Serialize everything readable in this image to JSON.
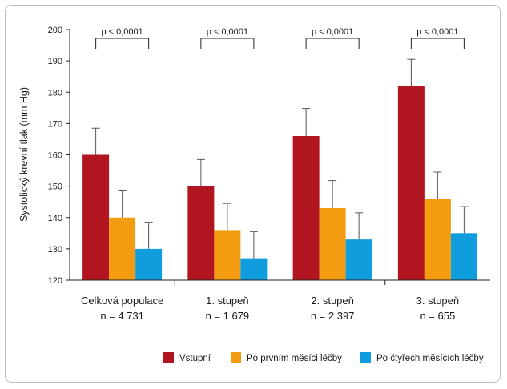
{
  "chart_data": {
    "type": "bar",
    "ylabel": "Systolický krevní tlak (mm Hg)",
    "ylim": [
      120,
      200
    ],
    "yticks": [
      120,
      130,
      140,
      150,
      160,
      170,
      180,
      190,
      200
    ],
    "categories": [
      "Celková populace",
      "1. stupeň",
      "2. stupeň",
      "3. stupeň"
    ],
    "category_n": [
      "n = 4 731",
      "n = 1 679",
      "n = 2 397",
      "n = 655"
    ],
    "series": [
      {
        "name": "Vstupní",
        "color": "#b1151f",
        "values": [
          160,
          150,
          166,
          182
        ],
        "errors": [
          8.5,
          8.5,
          8.8,
          8.5
        ]
      },
      {
        "name": "Po prvním měsíci léčby",
        "color": "#f39c12",
        "values": [
          140,
          136,
          143,
          146
        ],
        "errors": [
          8.5,
          8.5,
          8.8,
          8.5
        ]
      },
      {
        "name": "Po čtyřech měsících léčby",
        "color": "#0f9ddd",
        "values": [
          130,
          127,
          133,
          135
        ],
        "errors": [
          8.5,
          8.5,
          8.5,
          8.5
        ]
      }
    ],
    "annotations": [
      "p < 0,0001",
      "p < 0,0001",
      "p < 0,0001",
      "p < 0,0001"
    ],
    "legend_position": "bottom-right",
    "grid": false
  }
}
